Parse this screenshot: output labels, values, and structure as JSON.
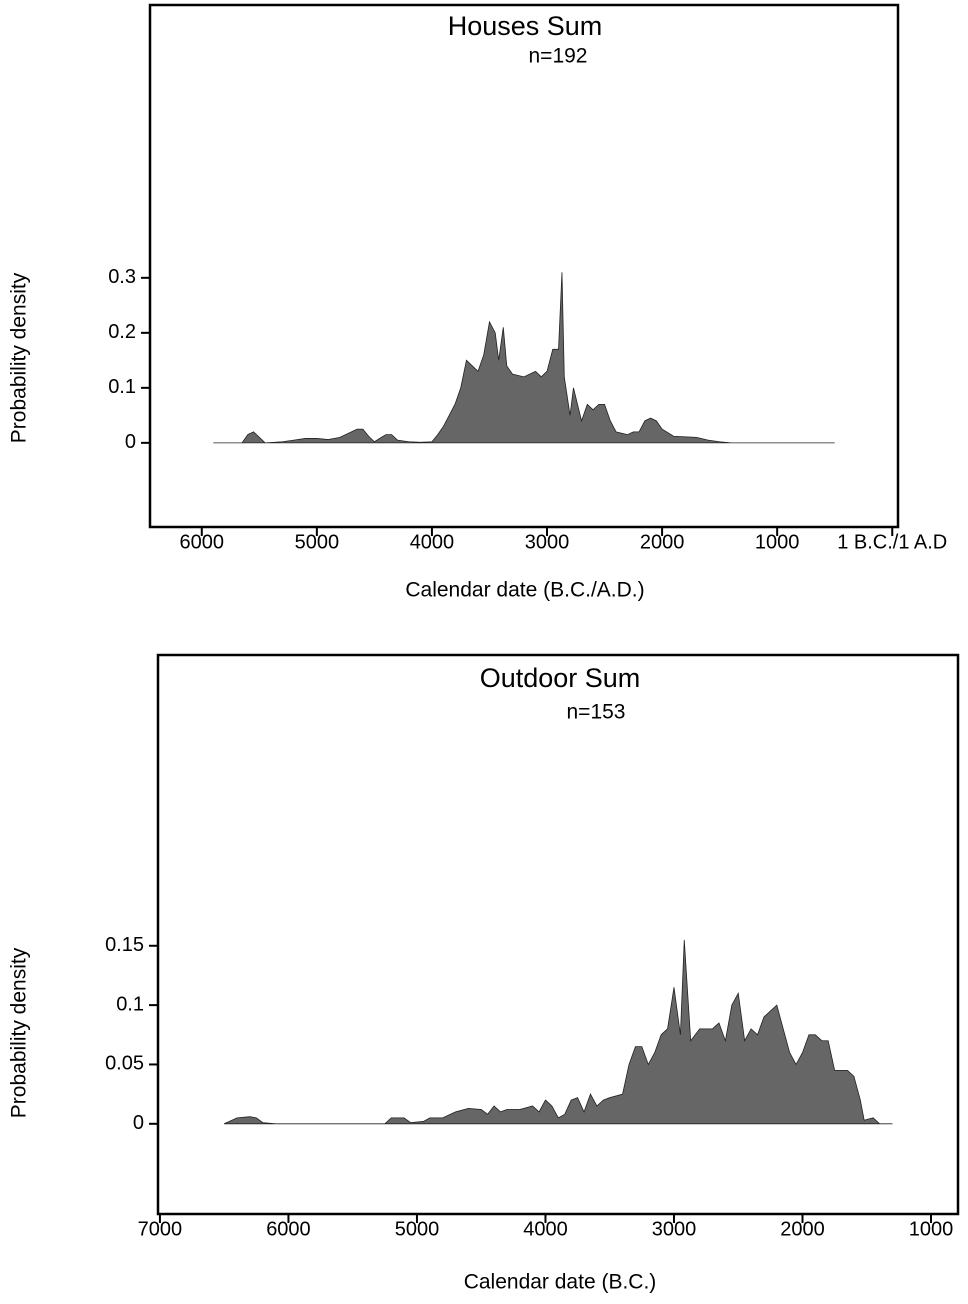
{
  "chart_data": [
    {
      "type": "area",
      "title": "Houses Sum",
      "subtitle": "n=192",
      "xlabel": "Calendar date (B.C./A.D.)",
      "ylabel": "Probability density",
      "color": "#666666",
      "x": [
        5900,
        5650,
        5600,
        5550,
        5500,
        5450,
        5300,
        5200,
        5100,
        5000,
        4900,
        4800,
        4700,
        4650,
        4600,
        4550,
        4500,
        4400,
        4350,
        4300,
        4200,
        4100,
        4000,
        3950,
        3900,
        3850,
        3800,
        3750,
        3700,
        3650,
        3600,
        3550,
        3500,
        3450,
        3420,
        3380,
        3350,
        3300,
        3200,
        3100,
        3050,
        3000,
        2950,
        2900,
        2870,
        2850,
        2800,
        2770,
        2700,
        2650,
        2600,
        2550,
        2500,
        2450,
        2400,
        2300,
        2250,
        2200,
        2150,
        2100,
        2050,
        2000,
        1900,
        1700,
        1600,
        1500,
        1400,
        500
      ],
      "values": [
        0,
        0,
        0.015,
        0.02,
        0.01,
        0,
        0.002,
        0.005,
        0.008,
        0.008,
        0.006,
        0.01,
        0.02,
        0.025,
        0.025,
        0.012,
        0.002,
        0.015,
        0.015,
        0.005,
        0.002,
        0.001,
        0.002,
        0.015,
        0.03,
        0.05,
        0.07,
        0.1,
        0.15,
        0.14,
        0.13,
        0.16,
        0.22,
        0.2,
        0.15,
        0.21,
        0.14,
        0.125,
        0.12,
        0.13,
        0.12,
        0.13,
        0.17,
        0.17,
        0.31,
        0.12,
        0.05,
        0.1,
        0.04,
        0.07,
        0.06,
        0.07,
        0.07,
        0.04,
        0.02,
        0.015,
        0.02,
        0.02,
        0.04,
        0.045,
        0.04,
        0.025,
        0.012,
        0.01,
        0.005,
        0.002,
        0,
        0
      ],
      "xlim": [
        6450,
        -50
      ],
      "ylim": [
        -0.153,
        0.796
      ],
      "xticks": [
        6000,
        5000,
        4000,
        3000,
        2000,
        1000,
        {
          "value": 0,
          "label": "1 B.C./1 A.D"
        }
      ],
      "yticks": [
        0,
        0.1,
        0.2,
        0.3
      ]
    },
    {
      "type": "area",
      "title": "Outdoor Sum",
      "subtitle": "n=153",
      "xlabel": "Calendar date (B.C.)",
      "ylabel": "Probability density",
      "color": "#666666",
      "x": [
        6500,
        6400,
        6300,
        6250,
        6200,
        6100,
        5250,
        5200,
        5100,
        5050,
        4950,
        4900,
        4800,
        4700,
        4600,
        4500,
        4450,
        4400,
        4350,
        4300,
        4200,
        4100,
        4050,
        4000,
        3950,
        3900,
        3850,
        3800,
        3750,
        3700,
        3650,
        3600,
        3550,
        3500,
        3400,
        3350,
        3300,
        3250,
        3200,
        3150,
        3100,
        3050,
        3000,
        2950,
        2920,
        2870,
        2800,
        2700,
        2650,
        2600,
        2550,
        2500,
        2450,
        2400,
        2350,
        2300,
        2250,
        2200,
        2150,
        2100,
        2050,
        2000,
        1950,
        1900,
        1850,
        1800,
        1750,
        1700,
        1650,
        1600,
        1550,
        1520,
        1450,
        1400,
        1300
      ],
      "values": [
        0,
        0.005,
        0.006,
        0.005,
        0.001,
        0,
        0,
        0.005,
        0.005,
        0.001,
        0.002,
        0.005,
        0.005,
        0.01,
        0.013,
        0.012,
        0.008,
        0.015,
        0.01,
        0.012,
        0.012,
        0.015,
        0.01,
        0.02,
        0.015,
        0.005,
        0.008,
        0.02,
        0.022,
        0.01,
        0.025,
        0.015,
        0.02,
        0.022,
        0.025,
        0.05,
        0.065,
        0.065,
        0.05,
        0.06,
        0.075,
        0.08,
        0.115,
        0.075,
        0.155,
        0.07,
        0.08,
        0.08,
        0.085,
        0.07,
        0.1,
        0.11,
        0.07,
        0.08,
        0.075,
        0.09,
        0.095,
        0.1,
        0.08,
        0.06,
        0.05,
        0.06,
        0.075,
        0.075,
        0.07,
        0.07,
        0.045,
        0.045,
        0.045,
        0.04,
        0.02,
        0.003,
        0.005,
        0,
        0
      ],
      "xlim": [
        7015,
        790
      ],
      "ylim": [
        -0.076,
        0.395
      ],
      "xticks": [
        7000,
        6000,
        5000,
        4000,
        3000,
        2000,
        1000
      ],
      "yticks": [
        0,
        0.05,
        0.1,
        0.15
      ]
    }
  ]
}
